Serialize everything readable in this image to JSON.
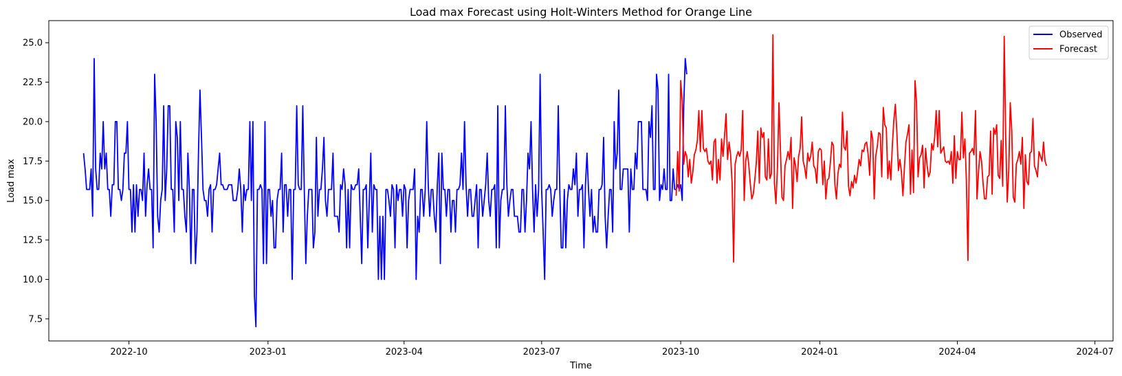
{
  "chart_data": {
    "type": "line",
    "title": "Load max Forecast using Holt-Winters Method for Orange Line",
    "xlabel": "Time",
    "ylabel": "Load max",
    "x_range": [
      "2022-08-09",
      "2024-07-13"
    ],
    "ylim": [
      6.1,
      26.4
    ],
    "x_ticks": [
      {
        "date": "2022-10-01",
        "label": "2022-10"
      },
      {
        "date": "2023-01-01",
        "label": "2023-01"
      },
      {
        "date": "2023-04-01",
        "label": "2023-04"
      },
      {
        "date": "2023-07-01",
        "label": "2023-07"
      },
      {
        "date": "2023-10-01",
        "label": "2023-10"
      },
      {
        "date": "2024-01-01",
        "label": "2024-01"
      },
      {
        "date": "2024-04-01",
        "label": "2024-04"
      },
      {
        "date": "2024-07-01",
        "label": "2024-07"
      }
    ],
    "y_ticks": [
      {
        "value": 7.5,
        "label": "7.5"
      },
      {
        "value": 10,
        "label": "10.0"
      },
      {
        "value": 12.5,
        "label": "12.5"
      },
      {
        "value": 15,
        "label": "15.0"
      },
      {
        "value": 17.5,
        "label": "17.5"
      },
      {
        "value": 20,
        "label": "20.0"
      },
      {
        "value": 22.5,
        "label": "22.5"
      },
      {
        "value": 25,
        "label": "25.0"
      }
    ],
    "grid": false,
    "legend_position": "top-right",
    "series": [
      {
        "name": "Observed",
        "color": "#0000ff",
        "start_date": "2022-09-01",
        "values": [
          18,
          17,
          15.7,
          15.7,
          15.7,
          17,
          14,
          24,
          17,
          15.7,
          15.7,
          18,
          17,
          20,
          17,
          18,
          15.7,
          15.7,
          14,
          16,
          16,
          20,
          20,
          15.7,
          15.7,
          15,
          15.7,
          18,
          18,
          20,
          15.7,
          15.7,
          13,
          16,
          13,
          16,
          14,
          15.7,
          15.7,
          15,
          18,
          14,
          16,
          17,
          15.7,
          15.7,
          12,
          23,
          20,
          14,
          13,
          15,
          15.7,
          21,
          15,
          17,
          21,
          21,
          15.7,
          15.7,
          13,
          20,
          19,
          15,
          20,
          15.7,
          15.7,
          14,
          13,
          18,
          15.7,
          11,
          15.7,
          15.7,
          11,
          13,
          18,
          22,
          19,
          15.7,
          15,
          15,
          14,
          15.7,
          16,
          13,
          15.7,
          15.7,
          16,
          17,
          18,
          16,
          16,
          15.7,
          15.7,
          15.7,
          16,
          16,
          16,
          15,
          15,
          15,
          15.7,
          17,
          15.7,
          13,
          16,
          15,
          15.7,
          15.7,
          20,
          15,
          20,
          9,
          7,
          15.7,
          15.7,
          16,
          15.7,
          11,
          20,
          11,
          15.7,
          15.7,
          14,
          15,
          12,
          12,
          15,
          15.7,
          15.7,
          18,
          13,
          16,
          16,
          14,
          15.7,
          15.7,
          10,
          15.7,
          15.7,
          21,
          16,
          15.7,
          15.7,
          21,
          15.7,
          11,
          14,
          15.7,
          15.7,
          15.7,
          12,
          13,
          19,
          14,
          15.7,
          15.7,
          17,
          19,
          15,
          14,
          15.7,
          15.7,
          15.7,
          18,
          14,
          14,
          14,
          13,
          16,
          15.7,
          17,
          16,
          12,
          15.7,
          12,
          16,
          15.7,
          15.7,
          16,
          16,
          17,
          14,
          11,
          15.7,
          15.7,
          16,
          12,
          15,
          18,
          13,
          16,
          15.7,
          15.7,
          10,
          14,
          10,
          14,
          10,
          15.7,
          15.7,
          15,
          14,
          16,
          15.7,
          12,
          16,
          15,
          15.7,
          15.7,
          14,
          16,
          15.7,
          12,
          15,
          15.7,
          15.7,
          15.7,
          17,
          10,
          14,
          13,
          15.7,
          15.7,
          14,
          15.7,
          20,
          16,
          14,
          15.7,
          15.7,
          14,
          13,
          16,
          18,
          11,
          18,
          15.7,
          15.7,
          14,
          15.7,
          15.7,
          13,
          15,
          15,
          13,
          15.7,
          15.7,
          16,
          18,
          15.7,
          20,
          16,
          14,
          15.7,
          15.7,
          14,
          14,
          15,
          16,
          12,
          15.7,
          15.7,
          14,
          15,
          16,
          18,
          15,
          14,
          15.7,
          15.7,
          16,
          12,
          21,
          12,
          15,
          15.7,
          15.7,
          21,
          16,
          14,
          15,
          15.7,
          15.7,
          14,
          14,
          14,
          13,
          13,
          15.7,
          15.7,
          13,
          15,
          18,
          17,
          20,
          15.7,
          13,
          16,
          14,
          15.7,
          23,
          15.7,
          13,
          10,
          15.7,
          15.7,
          16,
          15.7,
          14,
          15,
          15.7,
          15.7,
          21,
          15.7,
          12,
          12,
          15.7,
          12,
          15,
          16,
          15.7,
          15.7,
          17,
          16,
          18,
          14,
          15.7,
          15.7,
          16,
          12,
          16,
          18,
          15.7,
          14,
          15.7,
          13,
          14,
          13,
          13,
          15.7,
          15.7,
          16,
          19,
          14,
          12,
          14,
          15.7,
          15.7,
          13,
          20,
          17,
          18,
          22,
          15.7,
          15.7,
          17,
          17,
          17,
          17,
          13,
          17,
          15.7,
          15.7,
          18,
          17,
          20,
          20,
          20,
          15.7,
          15.7,
          15.7,
          15,
          20,
          19,
          21,
          15.7,
          15.7,
          23,
          22,
          15,
          16,
          15.7,
          17,
          15.7,
          15.7,
          23,
          15,
          15,
          17,
          15.7,
          15.7,
          16,
          15.7,
          16,
          15,
          21,
          24,
          23
        ]
      },
      {
        "name": "Forecast",
        "color": "#ff0000",
        "start_date": "2023-09-28",
        "values": [
          15.3,
          18.1,
          15.6,
          22.6,
          21.3,
          17.3,
          18.1,
          17.8,
          16.5,
          17.6,
          16.1,
          16.8,
          17.9,
          18.2,
          18.8,
          20.7,
          18.1,
          20.7,
          18.3,
          18.1,
          18.3,
          17.5,
          17.3,
          17.5,
          16.3,
          18.7,
          18.9,
          16.1,
          17.6,
          16.3,
          18.9,
          17.8,
          19.1,
          20.5,
          17.6,
          18.7,
          17.9,
          16.1,
          11.1,
          17.3,
          17.8,
          18.1,
          17.8,
          18.2,
          20.7,
          15,
          17.5,
          18.1,
          17.3,
          16.1,
          15.1,
          15.4,
          16.3,
          17.4,
          19.4,
          16.1,
          19.6,
          19,
          19.3,
          16.5,
          16.3,
          18.9,
          16.4,
          16.7,
          25.5,
          16.1,
          14.8,
          17.1,
          21.2,
          18.1,
          15.2,
          15,
          17.2,
          17.6,
          18.1,
          17.6,
          19,
          14.5,
          17.7,
          17.2,
          16.2,
          17.8,
          18.3,
          20.3,
          17.5,
          17.1,
          16.4,
          18,
          17.5,
          17.8,
          18.7,
          17.2,
          17,
          16.1,
          18.1,
          18.3,
          18.2,
          16,
          17.5,
          15.1,
          16.3,
          16.4,
          17.4,
          18.7,
          18.5,
          16,
          15.1,
          16.7,
          17.3,
          17.1,
          20.6,
          18.4,
          18.2,
          19.4,
          15.9,
          15.3,
          16.2,
          15.8,
          16.6,
          16.1,
          16.8,
          17.6,
          17.2,
          18.2,
          18.1,
          18.6,
          18.7,
          17.9,
          16.6,
          19.4,
          18.9,
          15.1,
          17.8,
          18.4,
          19.3,
          19.2,
          16.5,
          20.9,
          19.8,
          19.6,
          16.4,
          17.5,
          16.3,
          18.5,
          20.1,
          21.1,
          19.3,
          16.9,
          17.6,
          16.8,
          15.3,
          17.1,
          18.7,
          19.2,
          19.8,
          15.4,
          18.2,
          15.5,
          22.6,
          21.2,
          16.5,
          17.7,
          17.9,
          18.5,
          15.8,
          18.3,
          17.2,
          16.5,
          16.8,
          18.6,
          18.2,
          19,
          20.7,
          18.4,
          20.7,
          18,
          18.2,
          18.4,
          17.5,
          17.4,
          17.5,
          17.3,
          18.1,
          16.1,
          19.1,
          16.4,
          18.1,
          17.6,
          17.6,
          20.6,
          17.7,
          18.9,
          16.2,
          11.2,
          18,
          18.1,
          18.3,
          17.9,
          20.7,
          15.1,
          16.8,
          18.1,
          17.5,
          16.1,
          15.1,
          15.1,
          16.5,
          16.6,
          19.4,
          15.4,
          19.6,
          19.2,
          19.8,
          16.6,
          16.4,
          18.8,
          15.9,
          25.4,
          19,
          14.9,
          16.9,
          21.2,
          19.4,
          15.2,
          14.9,
          17.3,
          17.6,
          18.1,
          17.3,
          19,
          14.5,
          17.9,
          16.2,
          16,
          18,
          18.1,
          20.2,
          17.2,
          16.9,
          16.5,
          18.1,
          17.8,
          17.5,
          18.7,
          17.5,
          17.2
        ]
      }
    ]
  }
}
